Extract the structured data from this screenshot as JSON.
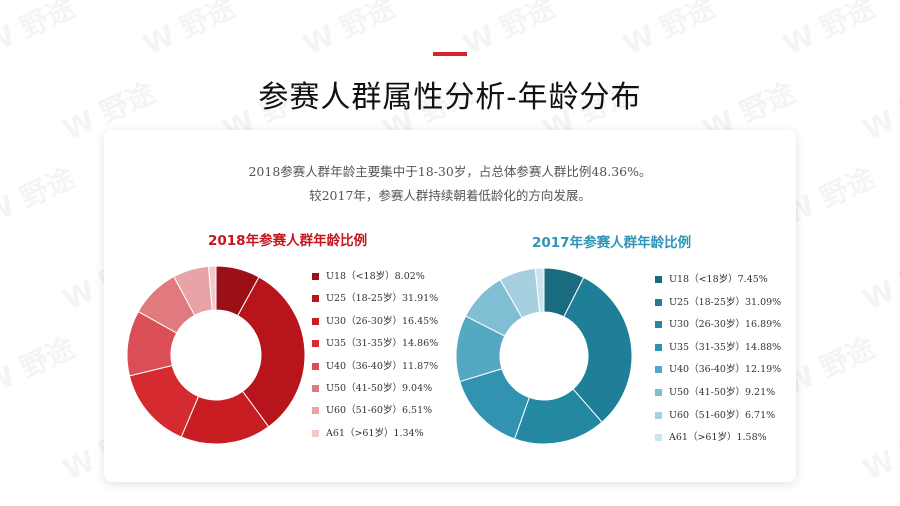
{
  "watermark": "W 野途",
  "title": "参赛人群属性分析-年龄分布",
  "summary": {
    "line1": "2018参赛人群年龄主要集中于18-30岁，占总体参赛人群比例48.36%。",
    "line2": "较2017年，参赛人群持续朝着低龄化的方向发展。"
  },
  "chart_data": [
    {
      "type": "pie",
      "donut": true,
      "title": "2018年参赛人群年龄比例",
      "categories": [
        "U18（<18岁）",
        "U25（18-25岁）",
        "U30（26-30岁）",
        "U35（31-35岁）",
        "U40（36-40岁）",
        "U50（41-50岁）",
        "U60（51-60岁）",
        "A61（>61岁）"
      ],
      "values": [
        8.02,
        31.91,
        16.45,
        14.86,
        11.87,
        9.04,
        6.51,
        1.34
      ],
      "labels": [
        "U18（<18岁）8.02%",
        "U25（18-25岁）31.91%",
        "U30（26-30岁）16.45%",
        "U35（31-35岁）14.86%",
        "U40（36-40岁）11.87%",
        "U50（41-50岁）9.04%",
        "U60（51-60岁）6.51%",
        "A61（>61岁）1.34%"
      ],
      "colors": [
        "#9b1016",
        "#b8141c",
        "#c91d24",
        "#d42a30",
        "#d94f55",
        "#e07a7e",
        "#e8a3a6",
        "#f1c9cb"
      ],
      "legend": "right"
    },
    {
      "type": "pie",
      "donut": true,
      "title": "2017年参赛人群年龄比例",
      "categories": [
        "U18（<18岁）",
        "U25（18-25岁）",
        "U30（26-30岁）",
        "U35（31-35岁）",
        "U40（36-40岁）",
        "U50（41-50岁）",
        "U60（51-60岁）",
        "A61（>61岁）"
      ],
      "values": [
        7.45,
        31.09,
        16.89,
        14.88,
        12.19,
        9.21,
        6.71,
        1.58
      ],
      "labels": [
        "U18（<18岁）7.45%",
        "U25（18-25岁）31.09%",
        "U30（26-30岁）16.89%",
        "U35（31-35岁）14.88%",
        "U40（36-40岁）12.19%",
        "U50（41-50岁）9.21%",
        "U60（51-60岁）6.71%",
        "A61（>61岁）1.58%"
      ],
      "colors": [
        "#1a6a80",
        "#1f7f98",
        "#2588a3",
        "#3193b0",
        "#55a8c2",
        "#80bed3",
        "#a6d0df",
        "#cbe3ec"
      ],
      "legend": "right"
    }
  ]
}
